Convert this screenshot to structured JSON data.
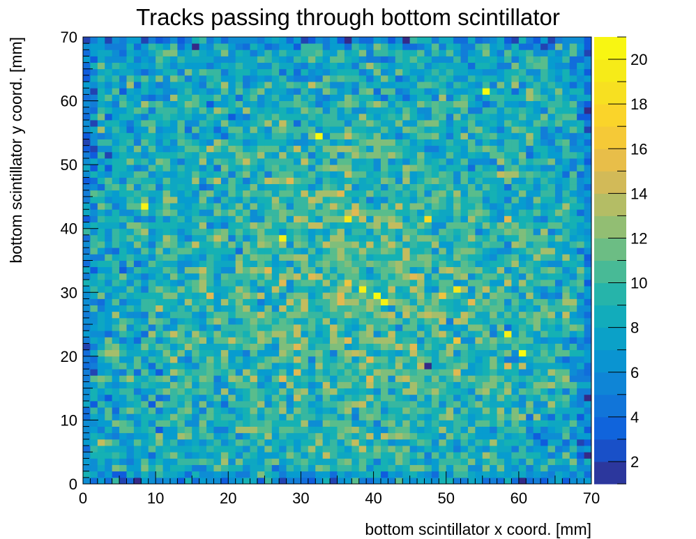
{
  "chart_data": {
    "type": "heatmap",
    "title": "Tracks passing through bottom scintillator",
    "xlabel": "bottom scintillator x coord. [mm]",
    "ylabel": "bottom scintillator y coord. [mm]",
    "xlim": [
      0,
      70
    ],
    "ylim": [
      0,
      70
    ],
    "bins": {
      "nx": 70,
      "ny": 70,
      "bin_width": 1
    },
    "x_ticks": [
      "0",
      "10",
      "20",
      "30",
      "40",
      "50",
      "60",
      "70"
    ],
    "y_ticks": [
      "0",
      "10",
      "20",
      "30",
      "40",
      "50",
      "60",
      "70"
    ],
    "z_range": [
      1,
      21
    ],
    "z_ticks": [
      "2",
      "4",
      "6",
      "8",
      "10",
      "12",
      "14",
      "16",
      "18",
      "20"
    ],
    "colormap": "parula",
    "colorbar": true,
    "grid": false,
    "legend": false,
    "bright_bins": [
      {
        "x": 8.5,
        "y": 43.5,
        "value": 20
      },
      {
        "x": 27.5,
        "y": 38.5,
        "value": 20
      },
      {
        "x": 32.5,
        "y": 54.5,
        "value": 21
      },
      {
        "x": 38.5,
        "y": 30.5,
        "value": 20
      },
      {
        "x": 40.5,
        "y": 29.5,
        "value": 21
      },
      {
        "x": 41.5,
        "y": 28.5,
        "value": 20
      },
      {
        "x": 55.5,
        "y": 61.5,
        "value": 21
      },
      {
        "x": 58.5,
        "y": 23.5,
        "value": 20
      },
      {
        "x": 60.5,
        "y": 20.5,
        "value": 21
      },
      {
        "x": 51.5,
        "y": 30.5,
        "value": 19
      },
      {
        "x": 36.5,
        "y": 41.5,
        "value": 19
      },
      {
        "x": 47.5,
        "y": 41.5,
        "value": 18
      }
    ],
    "dark_bins": [
      {
        "x": 47.5,
        "y": 18.5,
        "value": 1
      },
      {
        "x": 0.5,
        "y": 69.5,
        "value": 2
      }
    ]
  }
}
